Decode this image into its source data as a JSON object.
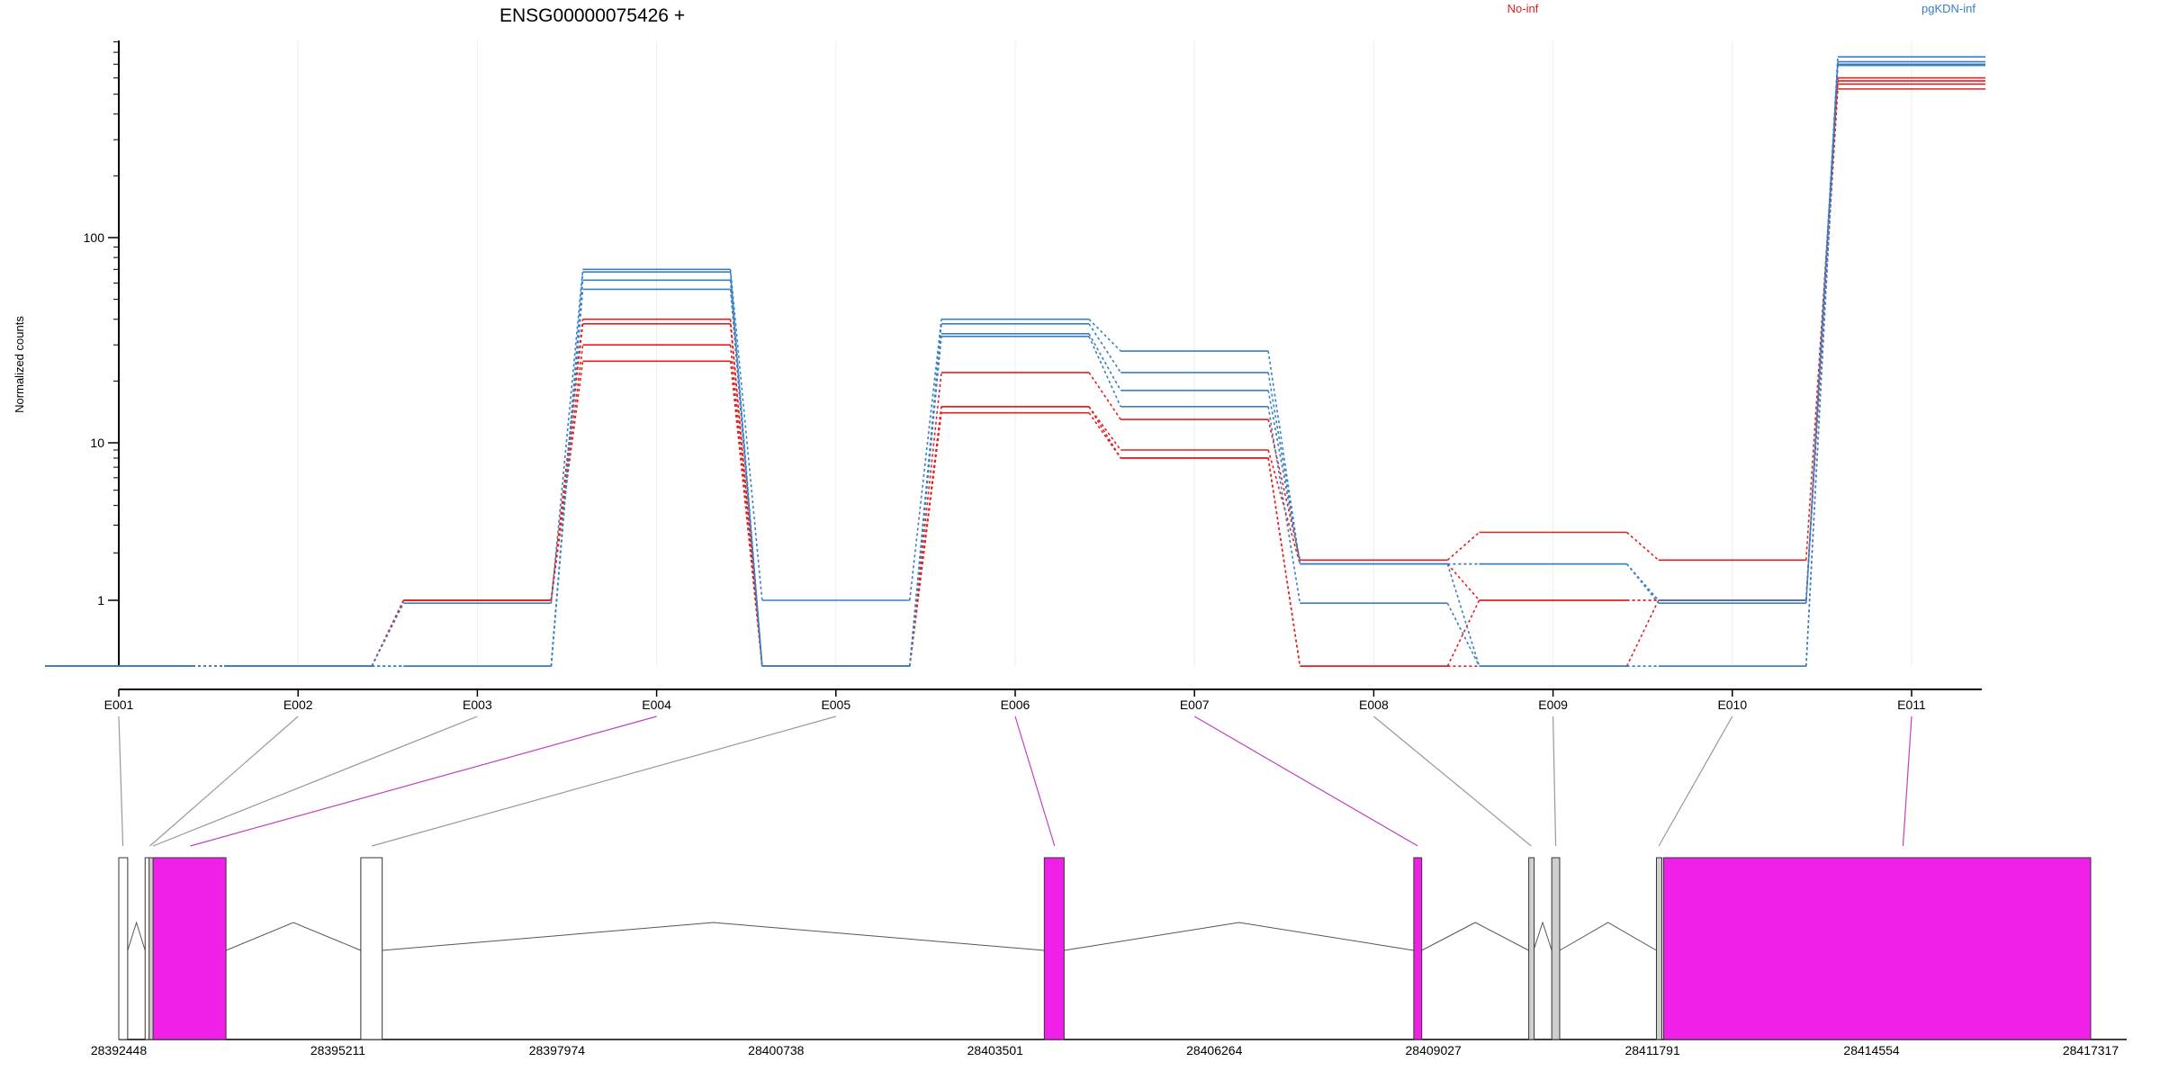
{
  "chart_data": {
    "type": "line",
    "title": "ENSG00000075426 +",
    "ylabel": "Normalized counts",
    "xlabel": "",
    "yscale": "log",
    "ylim": [
      0.5,
      900
    ],
    "yticks": [
      {
        "value": 1,
        "label": "1"
      },
      {
        "value": 10,
        "label": "10"
      },
      {
        "value": 100,
        "label": "100"
      }
    ],
    "categories": [
      "E001",
      "E002",
      "E003",
      "E004",
      "E005",
      "E006",
      "E007",
      "E008",
      "E009",
      "E010",
      "E011"
    ],
    "grid": "vertical",
    "legend_placement": "top-right",
    "legend": [
      {
        "name": "No-inf",
        "color": "#e02020"
      },
      {
        "name": "pgKDN-inf",
        "color": "#3a7fc0"
      }
    ],
    "series": [
      {
        "name": "No-inf",
        "color": "#e02020",
        "values": [
          0.5,
          0.5,
          1.0,
          40,
          0.5,
          22,
          13,
          1.8,
          2.7,
          1.8,
          600
        ]
      },
      {
        "name": "No-inf",
        "color": "#e02020",
        "values": [
          0.5,
          0.5,
          1.0,
          38,
          0.5,
          15,
          9,
          1.7,
          1.0,
          1.0,
          580
        ]
      },
      {
        "name": "No-inf",
        "color": "#e02020",
        "values": [
          0.5,
          0.5,
          1.0,
          30,
          0.5,
          15,
          8,
          0.5,
          1.0,
          1.0,
          560
        ]
      },
      {
        "name": "No-inf",
        "color": "#e02020",
        "values": [
          0.5,
          0.5,
          1.0,
          25,
          0.5,
          14,
          8,
          0.5,
          0.5,
          1.0,
          530
        ]
      },
      {
        "name": "pgKDN-inf",
        "color": "#3a7fc0",
        "values": [
          0.5,
          0.5,
          0.97,
          70,
          1.0,
          40,
          28,
          1.7,
          1.7,
          1.0,
          760
        ]
      },
      {
        "name": "pgKDN-inf",
        "color": "#3a7fc0",
        "values": [
          0.5,
          0.5,
          0.5,
          68,
          0.5,
          38,
          22,
          1.7,
          1.7,
          0.97,
          720
        ]
      },
      {
        "name": "pgKDN-inf",
        "color": "#3a7fc0",
        "values": [
          0.5,
          0.5,
          0.5,
          62,
          0.5,
          34,
          18,
          1.7,
          0.5,
          0.5,
          700
        ]
      },
      {
        "name": "pgKDN-inf",
        "color": "#3a7fc0",
        "values": [
          0.5,
          0.5,
          0.5,
          56,
          0.5,
          33,
          15,
          0.97,
          0.5,
          0.5,
          690
        ]
      }
    ],
    "gene_model": {
      "coordinate_range": [
        28392448,
        28417317
      ],
      "coordinate_labels": [
        "28392448",
        "28395211",
        "28397974",
        "28400738",
        "28403501",
        "28406264",
        "28409027",
        "28411791",
        "28414554",
        "28417317"
      ],
      "exons": [
        {
          "start": 28392448,
          "end": 28392560,
          "fill": "#ffffff",
          "highlight": false
        },
        {
          "start": 28392780,
          "end": 28392830,
          "fill": "#ffffff",
          "highlight": false
        },
        {
          "start": 28392830,
          "end": 28392870,
          "fill": "#cfcfcf",
          "highlight": false
        },
        {
          "start": 28392880,
          "end": 28393800,
          "fill": "#f020e8",
          "highlight": true
        },
        {
          "start": 28395500,
          "end": 28395770,
          "fill": "#ffffff",
          "highlight": false
        },
        {
          "start": 28404120,
          "end": 28404370,
          "fill": "#f020e8",
          "highlight": true
        },
        {
          "start": 28408780,
          "end": 28408880,
          "fill": "#f020e8",
          "highlight": true
        },
        {
          "start": 28410230,
          "end": 28410290,
          "fill": "#cfcfcf",
          "highlight": false
        },
        {
          "start": 28410520,
          "end": 28410620,
          "fill": "#cfcfcf",
          "highlight": false
        },
        {
          "start": 28411840,
          "end": 28411900,
          "fill": "#cfcfcf",
          "highlight": false
        },
        {
          "start": 28411930,
          "end": 28417317,
          "fill": "#f020e8",
          "highlight": true
        }
      ],
      "mapping": [
        {
          "bin": "E001",
          "coord": 28392500,
          "highlight": false
        },
        {
          "bin": "E002",
          "coord": 28392840,
          "highlight": false
        },
        {
          "bin": "E003",
          "coord": 28392880,
          "highlight": false
        },
        {
          "bin": "E004",
          "coord": 28393350,
          "highlight": true
        },
        {
          "bin": "E005",
          "coord": 28395640,
          "highlight": false
        },
        {
          "bin": "E006",
          "coord": 28404250,
          "highlight": true
        },
        {
          "bin": "E007",
          "coord": 28408830,
          "highlight": true
        },
        {
          "bin": "E008",
          "coord": 28410260,
          "highlight": false
        },
        {
          "bin": "E009",
          "coord": 28410570,
          "highlight": false
        },
        {
          "bin": "E010",
          "coord": 28411870,
          "highlight": false
        },
        {
          "bin": "E011",
          "coord": 28414950,
          "highlight": true
        }
      ]
    }
  }
}
